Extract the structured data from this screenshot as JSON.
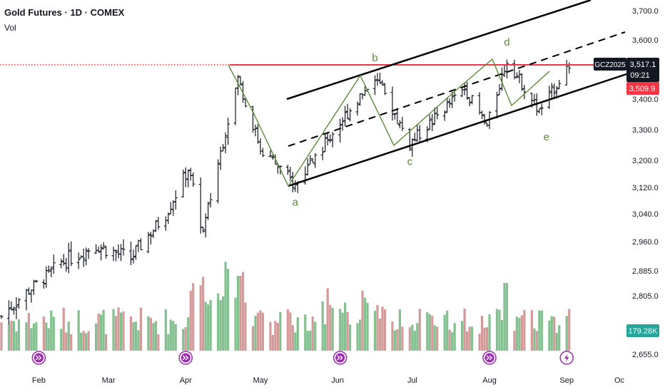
{
  "header": {
    "symbol": "Gold Futures · 1D · COMEX",
    "indicator": "Vol"
  },
  "price_axis": {
    "ticks": [
      "3,700.0",
      "3,600.0",
      "3,517.1",
      "3,509.9",
      "3,400.0",
      "3,300.0",
      "3,200.0",
      "3,120.0",
      "3,040.0",
      "2,960.0",
      "2,885.0",
      "2,805.0",
      "2,655.0"
    ],
    "last_price_label": "3,517.1",
    "countdown": "09:21",
    "prev_close_label": "3,509.9",
    "contract_label": "GCZ2025",
    "volume_label": "179.28K"
  },
  "time_axis": {
    "ticks": [
      "Feb",
      "Mar",
      "Apr",
      "May",
      "Jun",
      "Jul",
      "Aug",
      "Sep",
      "Oc"
    ]
  },
  "colors": {
    "up_volume": "#83c08f",
    "down_volume": "#d49a9a",
    "price_bars": "#131722",
    "resistance": "#f23645",
    "wave_line": "#5b8a3a",
    "channel": "#000000",
    "volume_badge": "#26a69a",
    "event_marker": "#9c27b0"
  },
  "chart_data": {
    "type": "ohlc",
    "title": "Gold Futures · 1D · COMEX",
    "y_scale": "custom (TradingView auto-scale)",
    "ylim": [
      2630,
      3760
    ],
    "xlim": [
      "2025-01-17",
      "2025-10-02"
    ],
    "resistance_level": 3517.1,
    "last_price": 3517.1,
    "previous_close": 3509.9,
    "wave_labels": [
      {
        "label": "a",
        "date": "2025-05-15",
        "price": 3125
      },
      {
        "label": "b",
        "date": "2025-06-16",
        "price": 3476
      },
      {
        "label": "c",
        "date": "2025-06-30",
        "price": 3255
      },
      {
        "label": "d",
        "date": "2025-08-08",
        "price": 3534
      },
      {
        "label": "e",
        "date": "2025-08-21",
        "price": 3358
      }
    ],
    "price_series": [
      {
        "date": "2025-01-17",
        "close": 2752
      },
      {
        "date": "2025-02-10",
        "close": 2906
      },
      {
        "date": "2025-02-24",
        "close": 2951
      },
      {
        "date": "2025-03-10",
        "close": 2916
      },
      {
        "date": "2025-03-24",
        "close": 3039
      },
      {
        "date": "2025-04-02",
        "close": 3175
      },
      {
        "date": "2025-04-08",
        "close": 2985
      },
      {
        "date": "2025-04-22",
        "close": 3470
      },
      {
        "date": "2025-05-01",
        "close": 3240
      },
      {
        "date": "2025-05-15",
        "close": 3125
      },
      {
        "date": "2025-06-16",
        "close": 3476
      },
      {
        "date": "2025-06-30",
        "close": 3255
      },
      {
        "date": "2025-07-22",
        "close": 3435
      },
      {
        "date": "2025-07-31",
        "close": 3310
      },
      {
        "date": "2025-08-08",
        "close": 3534
      },
      {
        "date": "2025-08-21",
        "close": 3358
      },
      {
        "date": "2025-09-02",
        "close": 3517
      }
    ],
    "volume_series": [
      {
        "date": "2025-04-10",
        "volume": "high"
      },
      {
        "date": "2025-04-22",
        "volume": "high"
      },
      {
        "date": "2025-06-03",
        "volume": "medium"
      },
      {
        "date": "2025-08-08",
        "volume": "high"
      },
      {
        "date": "2025-09-02",
        "volume": "179.28K"
      }
    ]
  }
}
